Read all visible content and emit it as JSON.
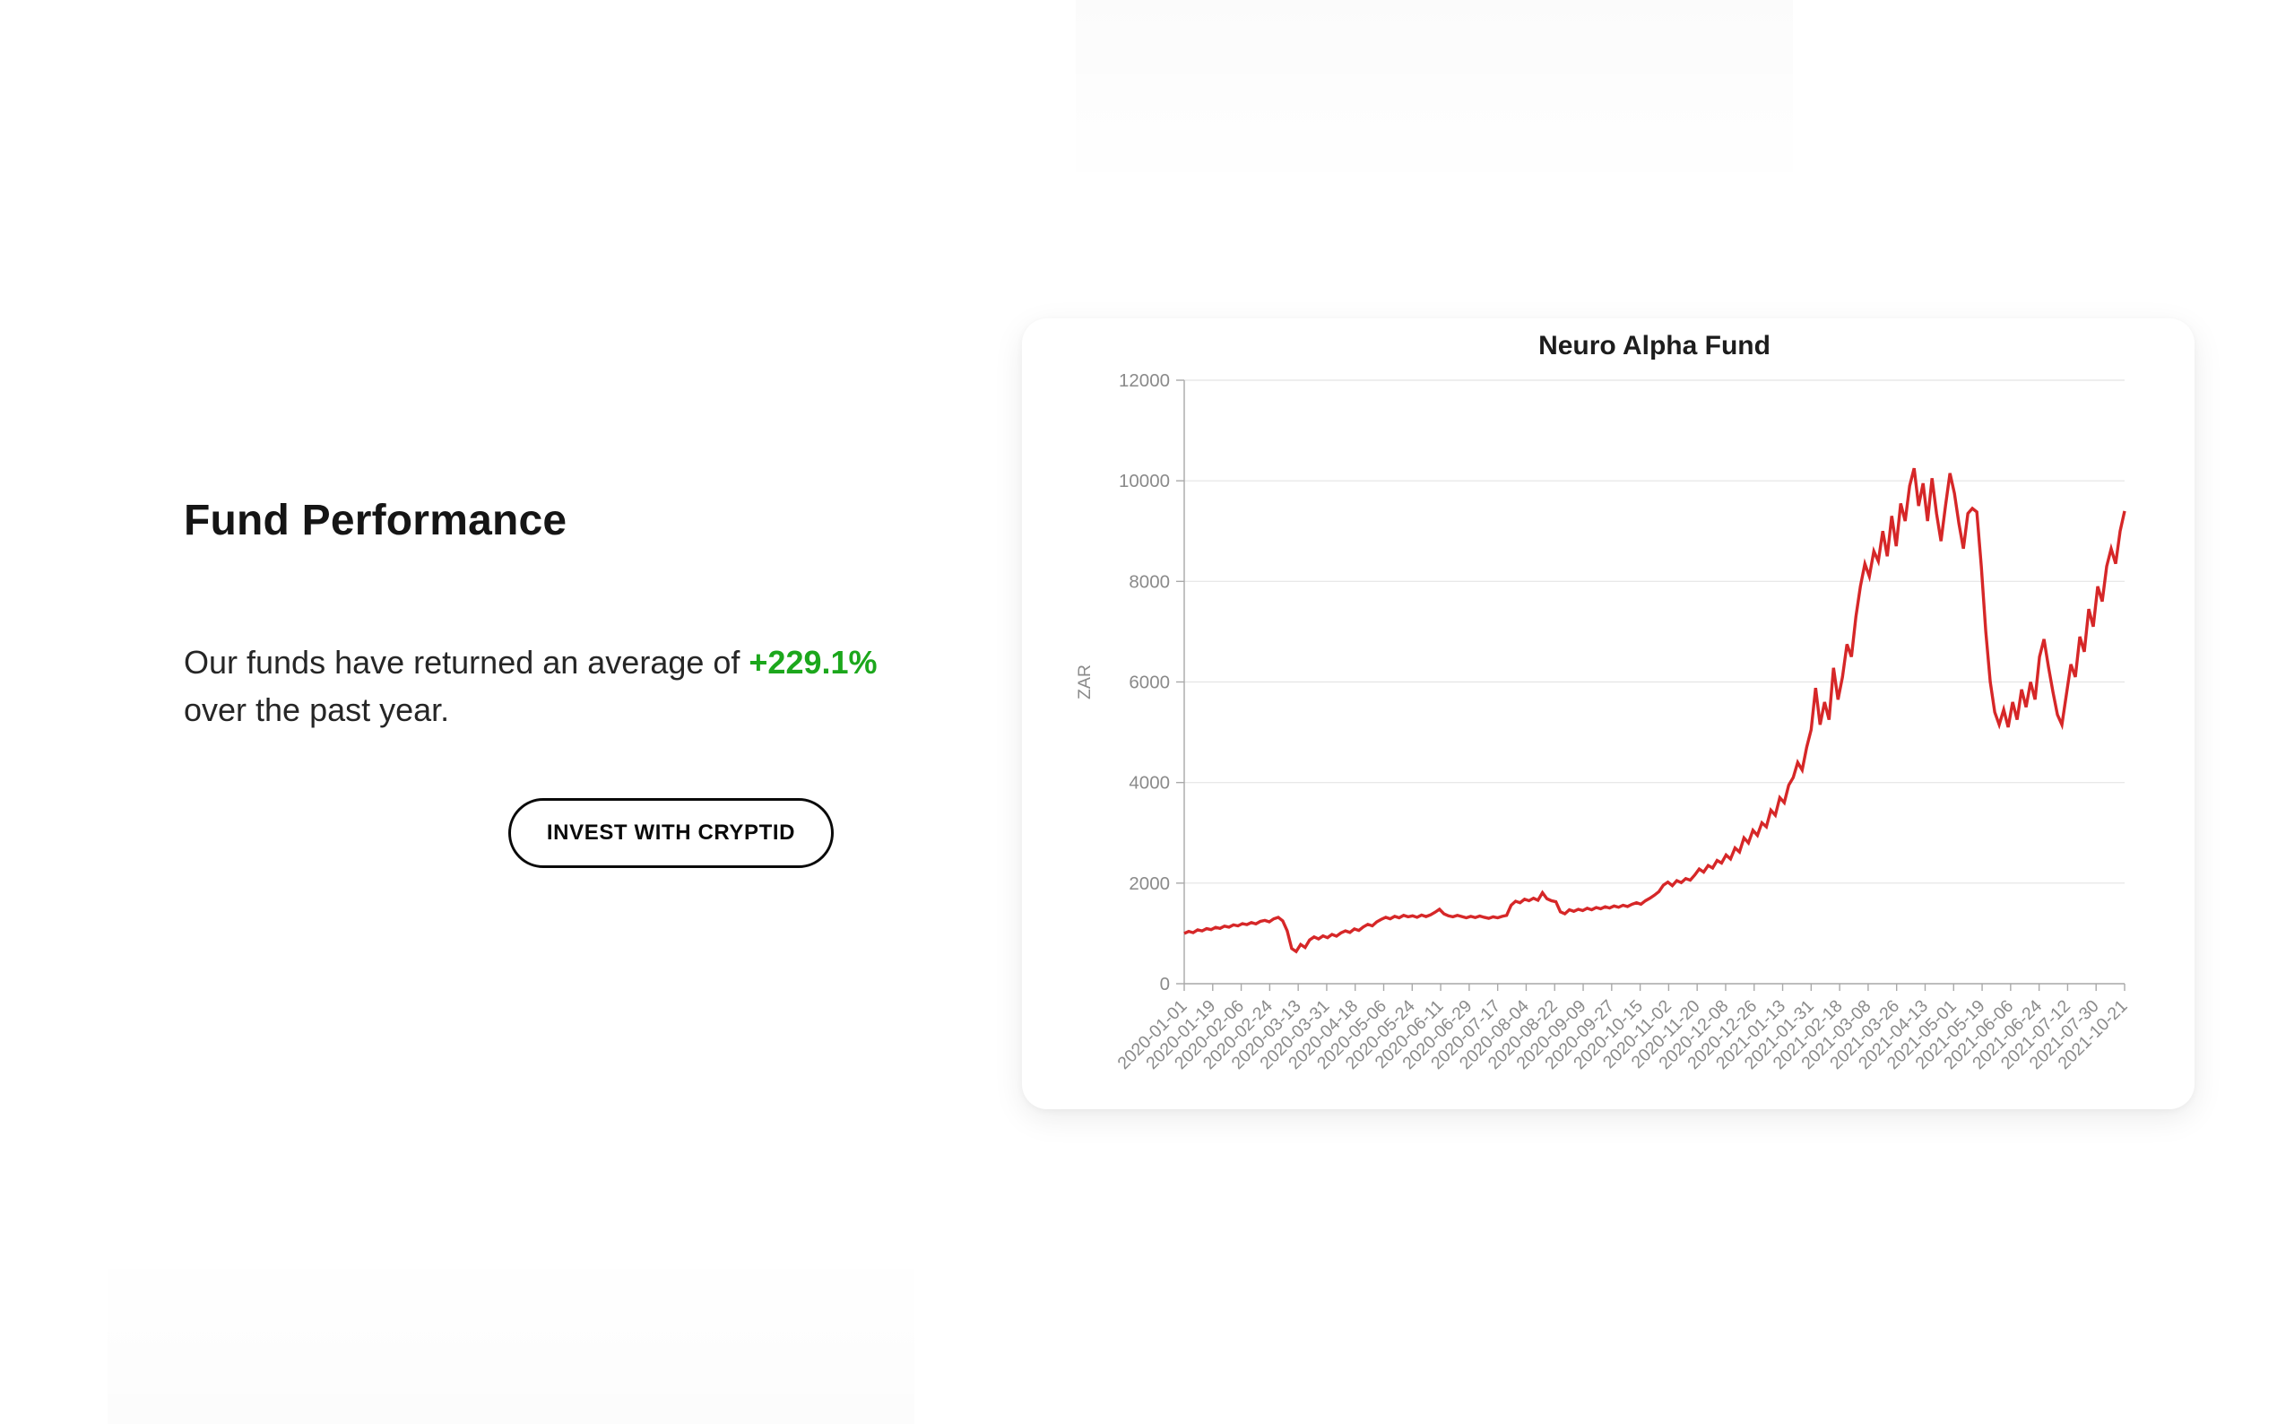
{
  "left_panel": {
    "heading": "Fund Performance",
    "paragraph": {
      "before": "Our funds have returned an average of ",
      "highlight": "+229.1%",
      "after": " over the past year."
    },
    "highlight_color": "#1CA71C",
    "cta_label": "INVEST WITH CRYPTID"
  },
  "chart_data": {
    "type": "line",
    "title": "Neuro Alpha Fund",
    "xlabel": "",
    "ylabel": "ZAR",
    "ylim": [
      0,
      12000
    ],
    "y_ticks": [
      0,
      2000,
      4000,
      6000,
      8000,
      10000,
      12000
    ],
    "grid": "horizontal",
    "legend": "none",
    "line_color": "#d62728",
    "x_tick_labels": [
      "2020-01-01",
      "2020-01-19",
      "2020-02-06",
      "2020-02-24",
      "2020-03-13",
      "2020-03-31",
      "2020-04-18",
      "2020-05-06",
      "2020-05-24",
      "2020-06-11",
      "2020-06-29",
      "2020-07-17",
      "2020-08-04",
      "2020-08-22",
      "2020-09-09",
      "2020-09-27",
      "2020-10-15",
      "2020-11-02",
      "2020-11-20",
      "2020-12-08",
      "2020-12-26",
      "2021-01-13",
      "2021-01-31",
      "2021-02-18",
      "2021-03-08",
      "2021-03-26",
      "2021-04-13",
      "2021-05-01",
      "2021-05-19",
      "2021-06-06",
      "2021-06-24",
      "2021-07-12",
      "2021-07-30",
      "2021-10-21"
    ],
    "series": [
      {
        "name": "Neuro Alpha Fund",
        "values": [
          1000,
          1040,
          1015,
          1070,
          1050,
          1095,
          1075,
          1120,
          1100,
          1145,
          1125,
          1170,
          1150,
          1195,
          1175,
          1215,
          1190,
          1240,
          1260,
          1230,
          1290,
          1320,
          1250,
          1050,
          700,
          640,
          780,
          720,
          870,
          930,
          890,
          950,
          915,
          980,
          945,
          1010,
          1050,
          1020,
          1090,
          1060,
          1130,
          1180,
          1150,
          1230,
          1280,
          1320,
          1290,
          1340,
          1310,
          1360,
          1330,
          1350,
          1320,
          1365,
          1335,
          1370,
          1420,
          1480,
          1390,
          1350,
          1330,
          1360,
          1335,
          1310,
          1340,
          1315,
          1345,
          1320,
          1300,
          1330,
          1310,
          1340,
          1360,
          1560,
          1640,
          1610,
          1680,
          1650,
          1700,
          1660,
          1810,
          1690,
          1650,
          1630,
          1430,
          1390,
          1470,
          1440,
          1480,
          1455,
          1500,
          1470,
          1515,
          1490,
          1530,
          1505,
          1545,
          1520,
          1560,
          1535,
          1580,
          1610,
          1580,
          1650,
          1700,
          1760,
          1830,
          1960,
          2020,
          1950,
          2050,
          2010,
          2090,
          2060,
          2160,
          2280,
          2220,
          2350,
          2300,
          2450,
          2400,
          2560,
          2480,
          2700,
          2620,
          2900,
          2800,
          3050,
          2950,
          3200,
          3120,
          3450,
          3350,
          3700,
          3600,
          3950,
          4100,
          4400,
          4250,
          4700,
          5050,
          5880,
          5150,
          5600,
          5250,
          6280,
          5650,
          6100,
          6750,
          6500,
          7300,
          7900,
          8350,
          8100,
          8600,
          8400,
          9000,
          8500,
          9300,
          8700,
          9550,
          9200,
          9900,
          10250,
          9500,
          9950,
          9200,
          10050,
          9350,
          8800,
          9500,
          10150,
          9750,
          9150,
          8650,
          9350,
          9450,
          9380,
          8300,
          7000,
          6000,
          5400,
          5150,
          5450,
          5100,
          5600,
          5250,
          5850,
          5500,
          6000,
          5650,
          6500,
          6850,
          6300,
          5800,
          5350,
          5150,
          5750,
          6350,
          6100,
          6900,
          6600,
          7450,
          7100,
          7900,
          7600,
          8300,
          8650,
          8350,
          9000,
          9400
        ]
      }
    ]
  }
}
